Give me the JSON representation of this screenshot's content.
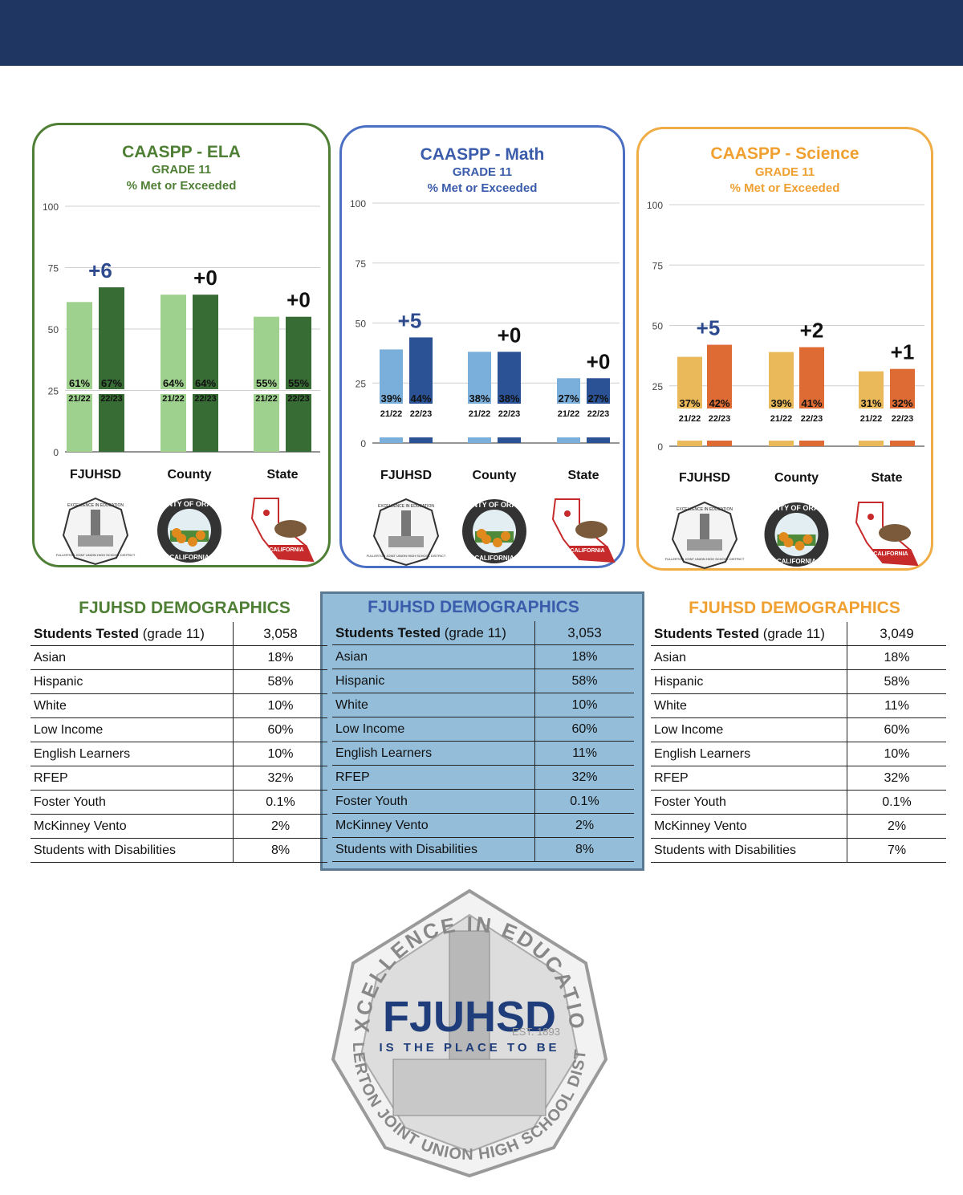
{
  "colors": {
    "banner": "#1f3662",
    "ela": {
      "border": "#4f7f35",
      "title": "#4f7f35",
      "light": "#9fd18e",
      "dark": "#386c35",
      "delta": "#2e4a8f"
    },
    "math": {
      "border": "#4b6fc2",
      "title": "#3a5cab",
      "light": "#7aaedb",
      "dark": "#2b5295",
      "delta": "#2e4a8f"
    },
    "science": {
      "border": "#f0ac45",
      "title": "#f0a030",
      "light": "#e9b95a",
      "dark": "#dd6b33",
      "delta": "#2e4a8f"
    }
  },
  "chart_data": [
    {
      "type": "bar",
      "title": "CAASPP - ELA",
      "subtitle": "GRADE 11",
      "ylabel": "% Met or Exceeded",
      "ylim": [
        0,
        100
      ],
      "yticks": [
        "100",
        "75",
        "50",
        "25",
        "0"
      ],
      "categories": [
        "FJUHSD",
        "County",
        "State"
      ],
      "series": [
        {
          "name": "21/22",
          "values": [
            61,
            64,
            55
          ],
          "labels": [
            "61%",
            "64%",
            "55%"
          ]
        },
        {
          "name": "22/23",
          "values": [
            67,
            64,
            55
          ],
          "labels": [
            "67%",
            "64%",
            "55%"
          ]
        }
      ],
      "deltas": [
        "+6",
        "+0",
        "+0"
      ],
      "delta_highlight": [
        true,
        false,
        false
      ]
    },
    {
      "type": "bar",
      "title": "CAASPP - Math",
      "subtitle": "GRADE 11",
      "ylabel": "% Met or Exceeded",
      "ylim": [
        0,
        100
      ],
      "yticks": [
        "100",
        "75",
        "50",
        "25",
        "0"
      ],
      "categories": [
        "FJUHSD",
        "County",
        "State"
      ],
      "series": [
        {
          "name": "21/22",
          "values": [
            39,
            38,
            27
          ],
          "labels": [
            "39%",
            "38%",
            "27%"
          ]
        },
        {
          "name": "22/23",
          "values": [
            44,
            38,
            27
          ],
          "labels": [
            "44%",
            "38%",
            "27%"
          ]
        }
      ],
      "deltas": [
        "+5",
        "+0",
        "+0"
      ],
      "delta_highlight": [
        true,
        false,
        false
      ]
    },
    {
      "type": "bar",
      "title": "CAASPP - Science",
      "subtitle": "GRADE 11",
      "ylabel": "% Met or Exceeded",
      "ylim": [
        0,
        100
      ],
      "yticks": [
        "100",
        "75",
        "50",
        "25",
        "0"
      ],
      "categories": [
        "FJUHSD",
        "County",
        "State"
      ],
      "series": [
        {
          "name": "21/22",
          "values": [
            37,
            39,
            31
          ],
          "labels": [
            "37%",
            "39%",
            "31%"
          ]
        },
        {
          "name": "22/23",
          "values": [
            42,
            41,
            32
          ],
          "labels": [
            "42%",
            "41%",
            "32%"
          ]
        }
      ],
      "deltas": [
        "+5",
        "+2",
        "+1"
      ],
      "delta_highlight": [
        true,
        false,
        false
      ]
    }
  ],
  "seal_text": {
    "fjuhsd_top": "EXCELLENCE IN EDUCATION",
    "fjuhsd_bottom": "FULLERTON JOINT UNION HIGH SCHOOL DISTRICT",
    "county": "COUNTY OF ORANGE",
    "county_bottom": "CALIFORNIA",
    "state": "CALIFORNIA"
  },
  "demographics": [
    {
      "title": "FJUHSD DEMOGRAPHICS",
      "head_label": "Students Tested",
      "head_suffix": "(grade 11)",
      "head_value": "3,058",
      "rows": [
        {
          "label": "Asian",
          "value": "18%"
        },
        {
          "label": "Hispanic",
          "value": "58%"
        },
        {
          "label": "White",
          "value": "10%"
        },
        {
          "label": "Low Income",
          "value": "60%"
        },
        {
          "label": "English Learners",
          "value": "10%"
        },
        {
          "label": "RFEP",
          "value": "32%"
        },
        {
          "label": "Foster Youth",
          "value": "0.1%"
        },
        {
          "label": "McKinney Vento",
          "value": "2%"
        },
        {
          "label": "Students with Disabilities",
          "value": "8%"
        }
      ]
    },
    {
      "title": "FJUHSD DEMOGRAPHICS",
      "head_label": "Students Tested",
      "head_suffix": "(grade 11)",
      "head_value": "3,053",
      "rows": [
        {
          "label": "Asian",
          "value": "18%"
        },
        {
          "label": "Hispanic",
          "value": "58%"
        },
        {
          "label": "White",
          "value": "10%"
        },
        {
          "label": "Low Income",
          "value": "60%"
        },
        {
          "label": "English Learners",
          "value": "11%"
        },
        {
          "label": "RFEP",
          "value": "32%"
        },
        {
          "label": "Foster Youth",
          "value": "0.1%"
        },
        {
          "label": "McKinney Vento",
          "value": "2%"
        },
        {
          "label": "Students with Disabilities",
          "value": "8%"
        }
      ]
    },
    {
      "title": "FJUHSD DEMOGRAPHICS",
      "head_label": "Students Tested",
      "head_suffix": "(grade 11)",
      "head_value": "3,049",
      "rows": [
        {
          "label": "Asian",
          "value": "18%"
        },
        {
          "label": "Hispanic",
          "value": "58%"
        },
        {
          "label": "White",
          "value": "11%"
        },
        {
          "label": "Low Income",
          "value": "60%"
        },
        {
          "label": "English Learners",
          "value": "10%"
        },
        {
          "label": "RFEP",
          "value": "32%"
        },
        {
          "label": "Foster Youth",
          "value": "0.1%"
        },
        {
          "label": "McKinney Vento",
          "value": "2%"
        },
        {
          "label": "Students with Disabilities",
          "value": "7%"
        }
      ]
    }
  ],
  "district_logo": {
    "arc_top": "EXCELLENCE IN EDUCATION",
    "arc_bottom": "FULLERTON JOINT UNION HIGH SCHOOL DISTRICT",
    "name": "FJUHSD",
    "est": "EST. 1893",
    "tagline": "IS THE PLACE TO BE"
  }
}
